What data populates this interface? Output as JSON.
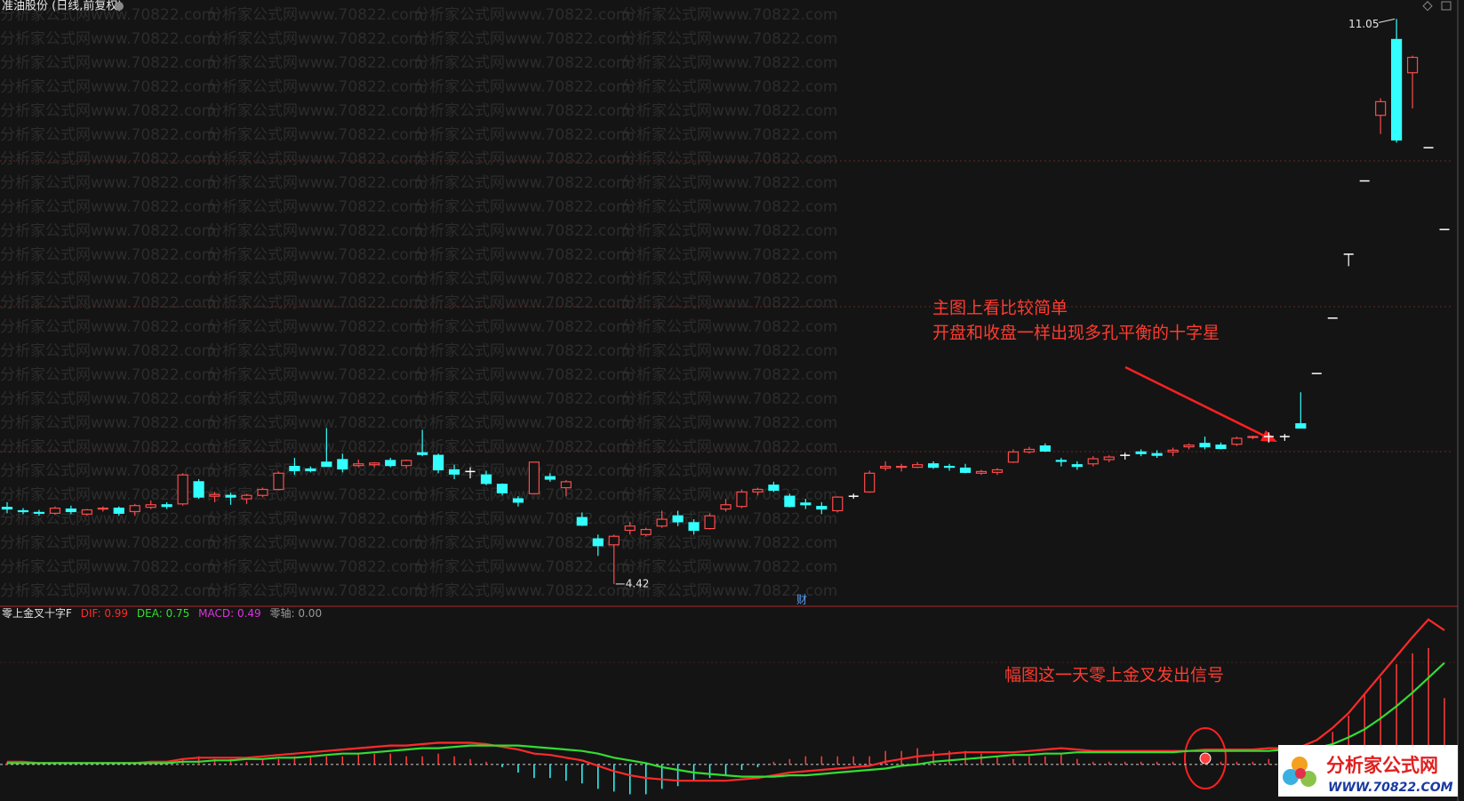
{
  "chart_data": [
    {
      "type": "candlestick",
      "title": "准油股份 (日线,前复权)",
      "ylim": [
        4.2,
        11.2
      ],
      "up_color": "#ff4a4a",
      "down_color": "#33ffff",
      "flat_color": "#ffffff",
      "high_marker": 11.05,
      "low_marker": 4.42,
      "event_marker": "财",
      "annotations": [
        "主图上看比较简单",
        "开盘和收盘一样出现多孔平衡的十字星"
      ],
      "candles": [
        [
          5.32,
          5.38,
          5.25,
          5.3
        ],
        [
          5.28,
          5.31,
          5.24,
          5.27
        ],
        [
          5.26,
          5.29,
          5.22,
          5.25
        ],
        [
          5.25,
          5.33,
          5.23,
          5.31
        ],
        [
          5.3,
          5.34,
          5.24,
          5.27
        ],
        [
          5.24,
          5.3,
          5.22,
          5.29
        ],
        [
          5.3,
          5.33,
          5.27,
          5.31
        ],
        [
          5.31,
          5.33,
          5.22,
          5.25
        ],
        [
          5.27,
          5.36,
          5.22,
          5.34
        ],
        [
          5.32,
          5.4,
          5.3,
          5.35
        ],
        [
          5.35,
          5.38,
          5.3,
          5.33
        ],
        [
          5.36,
          5.72,
          5.34,
          5.7
        ],
        [
          5.62,
          5.65,
          5.42,
          5.44
        ],
        [
          5.45,
          5.5,
          5.38,
          5.47
        ],
        [
          5.46,
          5.49,
          5.35,
          5.44
        ],
        [
          5.42,
          5.48,
          5.36,
          5.46
        ],
        [
          5.46,
          5.55,
          5.44,
          5.53
        ],
        [
          5.53,
          5.74,
          5.52,
          5.72
        ],
        [
          5.8,
          5.9,
          5.7,
          5.75
        ],
        [
          5.77,
          5.8,
          5.73,
          5.75
        ],
        [
          5.85,
          6.25,
          5.8,
          5.8
        ],
        [
          5.88,
          5.95,
          5.73,
          5.77
        ],
        [
          5.81,
          5.88,
          5.79,
          5.83
        ],
        [
          5.82,
          5.85,
          5.79,
          5.84
        ],
        [
          5.87,
          5.9,
          5.79,
          5.81
        ],
        [
          5.81,
          5.88,
          5.78,
          5.87
        ],
        [
          5.96,
          6.23,
          5.92,
          5.94
        ],
        [
          5.93,
          5.95,
          5.72,
          5.76
        ],
        [
          5.76,
          5.82,
          5.65,
          5.71
        ],
        [
          5.74,
          5.79,
          5.66,
          5.74
        ],
        [
          5.7,
          5.75,
          5.58,
          5.6
        ],
        [
          5.59,
          5.6,
          5.46,
          5.49
        ],
        [
          5.42,
          5.45,
          5.33,
          5.38
        ],
        [
          5.48,
          5.85,
          5.47,
          5.85
        ],
        [
          5.68,
          5.72,
          5.62,
          5.65
        ],
        [
          5.55,
          5.64,
          5.45,
          5.62
        ],
        [
          5.2,
          5.26,
          5.1,
          5.11
        ],
        [
          4.95,
          5.0,
          4.75,
          4.87
        ],
        [
          4.88,
          5.0,
          4.42,
          4.98
        ],
        [
          5.05,
          5.15,
          5.0,
          5.1
        ],
        [
          5.0,
          5.08,
          4.98,
          5.06
        ],
        [
          5.1,
          5.28,
          5.08,
          5.18
        ],
        [
          5.22,
          5.28,
          5.1,
          5.15
        ],
        [
          5.14,
          5.18,
          5.0,
          5.05
        ],
        [
          5.07,
          5.25,
          5.06,
          5.22
        ],
        [
          5.3,
          5.42,
          5.27,
          5.35
        ],
        [
          5.33,
          5.53,
          5.31,
          5.5
        ],
        [
          5.5,
          5.55,
          5.46,
          5.53
        ],
        [
          5.58,
          5.62,
          5.5,
          5.52
        ],
        [
          5.45,
          5.48,
          5.32,
          5.33
        ],
        [
          5.37,
          5.42,
          5.3,
          5.35
        ],
        [
          5.33,
          5.38,
          5.24,
          5.3
        ],
        [
          5.28,
          5.45,
          5.26,
          5.44
        ],
        [
          5.45,
          5.48,
          5.42,
          5.45
        ],
        [
          5.5,
          5.75,
          5.49,
          5.72
        ],
        [
          5.78,
          5.86,
          5.75,
          5.8
        ],
        [
          5.79,
          5.83,
          5.74,
          5.8
        ],
        [
          5.79,
          5.85,
          5.78,
          5.82
        ],
        [
          5.83,
          5.86,
          5.77,
          5.79
        ],
        [
          5.8,
          5.83,
          5.75,
          5.79
        ],
        [
          5.78,
          5.83,
          5.72,
          5.73
        ],
        [
          5.72,
          5.76,
          5.7,
          5.74
        ],
        [
          5.73,
          5.78,
          5.7,
          5.76
        ],
        [
          5.85,
          6.0,
          5.84,
          5.97
        ],
        [
          5.97,
          6.03,
          5.95,
          6.0
        ],
        [
          6.04,
          6.07,
          5.97,
          5.98
        ],
        [
          5.87,
          5.9,
          5.8,
          5.86
        ],
        [
          5.82,
          5.86,
          5.76,
          5.8
        ],
        [
          5.83,
          5.92,
          5.8,
          5.89
        ],
        [
          5.88,
          5.93,
          5.85,
          5.91
        ],
        [
          5.93,
          5.96,
          5.88,
          5.93
        ],
        [
          5.97,
          6.0,
          5.92,
          5.95
        ],
        [
          5.95,
          5.99,
          5.9,
          5.93
        ],
        [
          5.97,
          6.02,
          5.92,
          5.99
        ],
        [
          6.03,
          6.07,
          6.0,
          6.05
        ],
        [
          6.07,
          6.15,
          6.0,
          6.03
        ],
        [
          6.05,
          6.08,
          6.0,
          6.01
        ],
        [
          6.06,
          6.15,
          6.04,
          6.13
        ],
        [
          6.14,
          6.16,
          6.12,
          6.15
        ],
        [
          6.15,
          6.2,
          6.08,
          6.15
        ],
        [
          6.15,
          6.18,
          6.1,
          6.15
        ],
        [
          6.3,
          6.67,
          6.28,
          6.25
        ],
        [
          6.89,
          6.89,
          6.89,
          6.89
        ],
        [
          7.54,
          7.54,
          7.54,
          7.54
        ],
        [
          8.29,
          8.29,
          8.15,
          8.29
        ],
        [
          9.15,
          9.15,
          9.15,
          9.15
        ],
        [
          9.92,
          10.12,
          9.7,
          10.08
        ],
        [
          10.81,
          11.05,
          9.6,
          9.63
        ],
        [
          10.42,
          10.62,
          10.0,
          10.6
        ],
        [
          9.54,
          9.54,
          9.54,
          9.54
        ],
        [
          8.58,
          8.58,
          8.58,
          8.58
        ]
      ]
    },
    {
      "type": "macd",
      "title": "零上金叉十字F",
      "ylim": [
        -0.25,
        1.2
      ],
      "zero_axis": {
        "value": 0,
        "label": "零轴: 0.00"
      },
      "annotations": [
        "幅图这一天零上金叉发出信号"
      ],
      "series": [
        {
          "name": "DIF: 0.99",
          "color": "#ff2a2a",
          "values": [
            0.02,
            0.02,
            0.01,
            0.01,
            0.01,
            0.01,
            0.01,
            0.01,
            0.01,
            0.02,
            0.02,
            0.04,
            0.05,
            0.05,
            0.05,
            0.05,
            0.06,
            0.07,
            0.08,
            0.09,
            0.1,
            0.11,
            0.12,
            0.13,
            0.14,
            0.14,
            0.15,
            0.16,
            0.16,
            0.16,
            0.15,
            0.13,
            0.11,
            0.08,
            0.07,
            0.05,
            0.03,
            -0.01,
            -0.05,
            -0.08,
            -0.1,
            -0.11,
            -0.12,
            -0.12,
            -0.12,
            -0.12,
            -0.11,
            -0.1,
            -0.08,
            -0.06,
            -0.05,
            -0.04,
            -0.03,
            -0.02,
            -0.01,
            0.02,
            0.04,
            0.06,
            0.07,
            0.08,
            0.09,
            0.09,
            0.09,
            0.09,
            0.1,
            0.11,
            0.12,
            0.11,
            0.1,
            0.1,
            0.1,
            0.1,
            0.1,
            0.1,
            0.1,
            0.11,
            0.11,
            0.11,
            0.11,
            0.12,
            0.12,
            0.13,
            0.18,
            0.27,
            0.38,
            0.52,
            0.66,
            0.8,
            0.94,
            1.07,
            0.99
          ]
        },
        {
          "name": "DEA: 0.75",
          "color": "#33dd33",
          "values": [
            0.01,
            0.01,
            0.01,
            0.01,
            0.01,
            0.01,
            0.01,
            0.01,
            0.01,
            0.01,
            0.01,
            0.02,
            0.02,
            0.03,
            0.03,
            0.04,
            0.04,
            0.05,
            0.05,
            0.06,
            0.07,
            0.08,
            0.08,
            0.09,
            0.1,
            0.11,
            0.12,
            0.12,
            0.13,
            0.14,
            0.14,
            0.14,
            0.14,
            0.13,
            0.12,
            0.11,
            0.1,
            0.08,
            0.05,
            0.03,
            0.01,
            -0.02,
            -0.04,
            -0.06,
            -0.07,
            -0.08,
            -0.09,
            -0.09,
            -0.09,
            -0.08,
            -0.08,
            -0.07,
            -0.06,
            -0.05,
            -0.04,
            -0.03,
            -0.01,
            0.0,
            0.02,
            0.03,
            0.04,
            0.05,
            0.06,
            0.07,
            0.07,
            0.08,
            0.08,
            0.09,
            0.09,
            0.09,
            0.09,
            0.09,
            0.09,
            0.09,
            0.1,
            0.1,
            0.1,
            0.1,
            0.1,
            0.1,
            0.11,
            0.11,
            0.12,
            0.15,
            0.2,
            0.26,
            0.34,
            0.43,
            0.53,
            0.64,
            0.75
          ]
        },
        {
          "name": "MACD: 0.49",
          "color": "#dd33dd",
          "up_color": "#ff3c3c",
          "down_color": "#33ffff",
          "values": [
            0.02,
            0.02,
            0,
            0,
            0,
            0,
            0,
            0,
            0,
            0.02,
            0.02,
            0.04,
            0.06,
            0.04,
            0.04,
            0.02,
            0.04,
            0.04,
            0.06,
            0.06,
            0.06,
            0.06,
            0.08,
            0.08,
            0.08,
            0.06,
            0.06,
            0.08,
            0.06,
            0.04,
            0.02,
            -0.02,
            -0.06,
            -0.1,
            -0.1,
            -0.12,
            -0.14,
            -0.18,
            -0.2,
            -0.22,
            -0.22,
            -0.18,
            -0.16,
            -0.12,
            -0.1,
            -0.08,
            -0.04,
            -0.02,
            0.02,
            0.04,
            0.06,
            0.06,
            0.06,
            0.06,
            0.06,
            0.1,
            0.1,
            0.12,
            0.1,
            0.1,
            0.1,
            0.08,
            0.06,
            0.04,
            0.06,
            0.06,
            0.08,
            0.04,
            0.02,
            0.02,
            0.02,
            0.02,
            0.02,
            0.02,
            0,
            0.02,
            0.02,
            0.02,
            0.02,
            0.04,
            0.02,
            0.04,
            0.12,
            0.24,
            0.36,
            0.52,
            0.64,
            0.74,
            0.82,
            0.86,
            0.49
          ]
        }
      ]
    }
  ],
  "watermark": {
    "background_text": "分析家公式网www.70822.com",
    "logo_title": "分析家公式网",
    "logo_url": "WWW.70822.COM"
  }
}
